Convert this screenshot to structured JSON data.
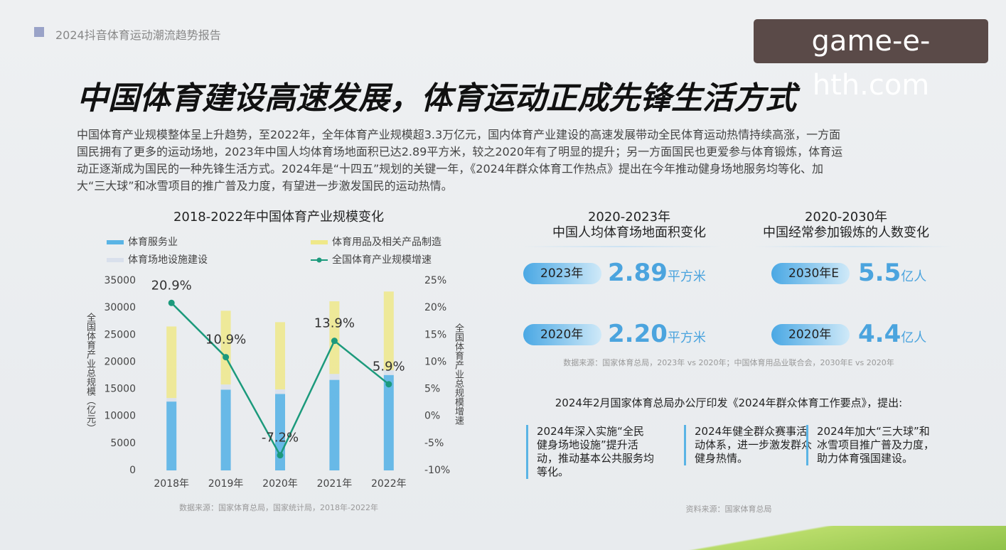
{
  "header": {
    "report_name": "2024抖音体育运动潮流趋势报告",
    "watermark": "game-e-hth.com"
  },
  "title": "中国体育建设高速发展，体育运动正成先锋生活方式",
  "intro": [
    "中国体育产业规模整体呈上升趋势，至2022年，全年体育产业规模超3.3万亿元，国内体育产业建设的高速发展带动全民体育运动热情持续高涨，一方面",
    "国民拥有了更多的运动场地，2023年中国人均体育场地面积已达2.89平方米，较之2020年有了明显的提升；另一方面国民也更爱参与体育锻炼，体育运",
    "动正逐渐成为国民的一种先锋生活方式。2024年是“十四五”规划的关键一年，《2024年群众体育工作热点》提出在今年推动健身场地服务均等化、加",
    "大“三大球”和冰雪项目的推广普及力度，有望进一步激发国民的运动热情。"
  ],
  "chart_data": {
    "type": "bar",
    "title": "2018-2022年中国体育产业规模变化",
    "categories": [
      "2018年",
      "2019年",
      "2020年",
      "2021年",
      "2022年"
    ],
    "series": [
      {
        "name": "体育服务业",
        "color": "#5ab4e5",
        "values": [
          12700,
          14900,
          14100,
          16700,
          17600
        ]
      },
      {
        "name": "体育用品及相关产品制造",
        "color": "#efe889",
        "values": [
          13200,
          13600,
          12400,
          13400,
          14500
        ]
      },
      {
        "name": "体育场地设施建设",
        "color": "#d9e0ec",
        "values": [
          650,
          950,
          850,
          1100,
          900
        ]
      },
      {
        "name": "全国体育产业规模增速",
        "type": "line",
        "axis": "y2",
        "color": "#1c9a7c",
        "values": [
          20.9,
          10.9,
          -7.2,
          13.9,
          5.9
        ],
        "value_labels": [
          "20.9%",
          "10.9%",
          "-7.2%",
          "13.9%",
          "5.9%"
        ]
      }
    ],
    "ylim": [
      0,
      35000
    ],
    "yticks": [
      0,
      5000,
      10000,
      15000,
      20000,
      25000,
      30000,
      35000
    ],
    "y2lim": [
      -10,
      25
    ],
    "y2ticks": [
      {
        "value": -10,
        "label": "-10%"
      },
      {
        "value": -5,
        "label": "-5%"
      },
      {
        "value": 0,
        "label": "0%"
      },
      {
        "value": 5,
        "label": "5%"
      },
      {
        "value": 10,
        "label": "10%"
      },
      {
        "value": 15,
        "label": "15%"
      },
      {
        "value": 20,
        "label": "20%"
      },
      {
        "value": 25,
        "label": "25%"
      }
    ],
    "ylabel": "全国体育产业总规模（亿元）",
    "y2label": "全国体育产业总规模增速",
    "source": "数据来源：国家体育总局，国家统计局，2018年-2022年"
  },
  "area_stats": {
    "title": [
      "2020-2023年",
      "中国人均体育场地面积变化"
    ],
    "items": [
      {
        "year": "2023年",
        "value": "2.89",
        "unit": "平方米"
      },
      {
        "year": "2020年",
        "value": "2.20",
        "unit": "平方米"
      }
    ]
  },
  "exercise_stats": {
    "title": [
      "2020-2030年",
      "中国经常参加锻炼的人数变化"
    ],
    "items": [
      {
        "year": "2030年E",
        "value": "5.5",
        "unit": "亿人"
      },
      {
        "year": "2020年",
        "value": "4.4",
        "unit": "亿人"
      }
    ]
  },
  "stats_source": "数据来源：国家体育总局，2023年 vs 2020年；中国体育用品业联合会，2030年E vs 2020年",
  "policy": {
    "heading": "2024年2月国家体育总局办公厅印发《2024年群众体育工作要点》，提出:",
    "items": [
      "2024年深入实施“全民健身场地设施”提升活动，推动基本公共服务均等化。",
      "2024年健全群众赛事活动体系，进一步激发群众健身热情。",
      "2024年加大“三大球”和冰雪项目推广普及力度，助力体育强国建设。"
    ],
    "source": "资料来源：国家体育总局"
  }
}
